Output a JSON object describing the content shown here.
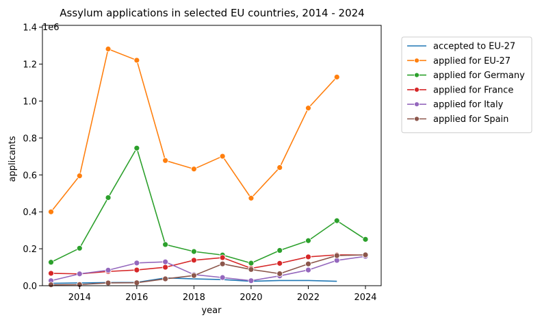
{
  "chart_data": {
    "type": "line",
    "title": "Assylum applications in selected EU countries, 2014 - 2024",
    "xlabel": "year",
    "ylabel": "applicants",
    "y_offset_label": "1e6",
    "xlim": [
      2012.7,
      2024.55
    ],
    "ylim": [
      0,
      1.41
    ],
    "x_ticks": [
      2014,
      2016,
      2018,
      2020,
      2022,
      2024
    ],
    "y_ticks": [
      0.0,
      0.2,
      0.4,
      0.6,
      0.8,
      1.0,
      1.2,
      1.4
    ],
    "x_tick_labels": [
      "2014",
      "2016",
      "2018",
      "2020",
      "2022",
      "2024"
    ],
    "y_tick_labels": [
      "0.0",
      "0.2",
      "0.4",
      "0.6",
      "0.8",
      "1.0",
      "1.2",
      "1.4"
    ],
    "grid": false,
    "legend_position": "outside-right",
    "series": [
      {
        "name": "accepted to EU-27",
        "color": "#1f77b4",
        "marker": false,
        "x": [
          2013,
          2014,
          2015,
          2016,
          2017,
          2018,
          2019,
          2020,
          2021,
          2022,
          2023
        ],
        "values": [
          0.013,
          0.015,
          0.017,
          0.018,
          0.042,
          0.037,
          0.033,
          0.024,
          0.028,
          0.028,
          0.024
        ]
      },
      {
        "name": "applied for EU-27",
        "color": "#ff7f0e",
        "marker": true,
        "x": [
          2013,
          2014,
          2015,
          2016,
          2017,
          2018,
          2019,
          2020,
          2021,
          2022,
          2023
        ],
        "values": [
          0.4,
          0.595,
          1.282,
          1.221,
          0.678,
          0.632,
          0.701,
          0.474,
          0.64,
          0.962,
          1.13
        ]
      },
      {
        "name": "applied for Germany",
        "color": "#2ca02c",
        "marker": true,
        "x": [
          2013,
          2014,
          2015,
          2016,
          2017,
          2018,
          2019,
          2020,
          2021,
          2022,
          2023,
          2024
        ],
        "values": [
          0.127,
          0.203,
          0.477,
          0.745,
          0.223,
          0.185,
          0.166,
          0.122,
          0.191,
          0.244,
          0.352,
          0.251
        ]
      },
      {
        "name": "applied for France",
        "color": "#d62728",
        "marker": true,
        "x": [
          2013,
          2014,
          2015,
          2016,
          2017,
          2018,
          2019,
          2020,
          2021,
          2022,
          2023,
          2024
        ],
        "values": [
          0.067,
          0.064,
          0.077,
          0.085,
          0.1,
          0.138,
          0.152,
          0.094,
          0.121,
          0.156,
          0.167,
          0.166
        ]
      },
      {
        "name": "applied for Italy",
        "color": "#9467bd",
        "marker": true,
        "x": [
          2013,
          2014,
          2015,
          2016,
          2017,
          2018,
          2019,
          2020,
          2021,
          2022,
          2023,
          2024
        ],
        "values": [
          0.027,
          0.064,
          0.084,
          0.123,
          0.129,
          0.06,
          0.044,
          0.027,
          0.053,
          0.085,
          0.137,
          0.159
        ]
      },
      {
        "name": "applied for Spain",
        "color": "#8c564b",
        "marker": true,
        "x": [
          2013,
          2014,
          2015,
          2016,
          2017,
          2018,
          2019,
          2020,
          2021,
          2022,
          2023,
          2024
        ],
        "values": [
          0.005,
          0.006,
          0.015,
          0.016,
          0.037,
          0.055,
          0.118,
          0.088,
          0.065,
          0.118,
          0.163,
          0.167
        ]
      }
    ]
  }
}
